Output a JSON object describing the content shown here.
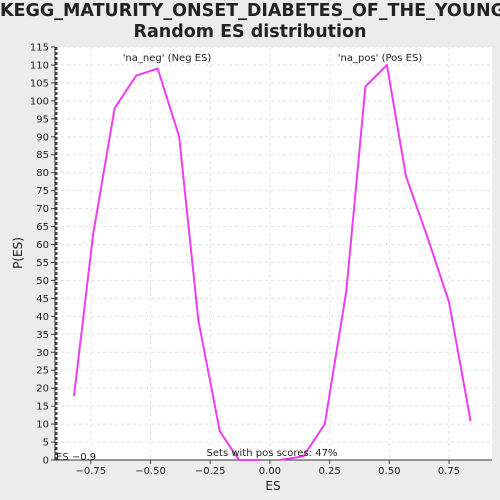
{
  "chart_data": {
    "type": "line",
    "title_line1": "KEGG_MATURITY_ONSET_DIABETES_OF_THE_YOUNG:",
    "title_line2": "Random ES distribution",
    "xlabel": "ES",
    "ylabel": "P(ES)",
    "xlim": [
      -0.9,
      0.93
    ],
    "ylim": [
      0,
      115
    ],
    "xticks": [
      -0.75,
      -0.5,
      -0.25,
      0.0,
      0.25,
      0.5,
      0.75
    ],
    "xtick_labels": [
      "−0.75",
      "−0.50",
      "−0.25",
      "0.00",
      "0.25",
      "0.50",
      "0.75"
    ],
    "yticks": [
      0,
      5,
      10,
      15,
      20,
      25,
      30,
      35,
      40,
      45,
      50,
      55,
      60,
      65,
      70,
      75,
      80,
      85,
      90,
      95,
      100,
      105,
      110,
      115
    ],
    "grid": true,
    "series": [
      {
        "name": "'na_neg' (Neg ES)",
        "color": "#ee3ef0",
        "label_color": "#5050d0",
        "x": [
          -0.82,
          -0.74,
          -0.65,
          -0.56,
          -0.47,
          -0.38,
          -0.3,
          -0.21,
          -0.13,
          -0.04
        ],
        "y": [
          18,
          63,
          98,
          107,
          109,
          90,
          39,
          8,
          0,
          0
        ]
      },
      {
        "name": "'na_pos' (Pos ES)",
        "color": "#ee3ef0",
        "label_color": "#e04848",
        "x": [
          0.04,
          0.14,
          0.23,
          0.32,
          0.4,
          0.49,
          0.57,
          0.66,
          0.75,
          0.84
        ],
        "y": [
          0,
          1,
          10,
          47,
          104,
          110,
          79,
          62,
          44,
          11
        ]
      }
    ],
    "observed_es": -0.9,
    "es_annotation": "ES −0.9",
    "pos_scores_annotation": "Sets with pos scores: 47%"
  }
}
